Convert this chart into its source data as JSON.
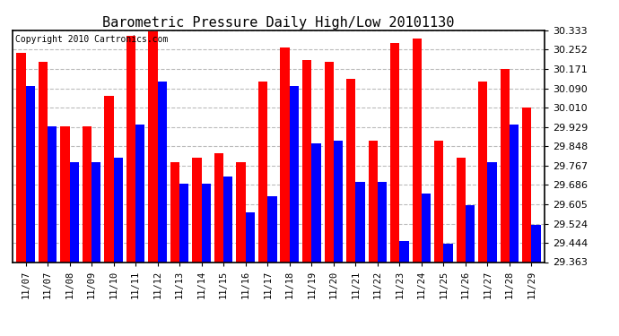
{
  "title": "Barometric Pressure Daily High/Low 20101130",
  "copyright": "Copyright 2010 Cartronics.com",
  "labels": [
    "11/07",
    "11/07",
    "11/08",
    "11/09",
    "11/10",
    "11/11",
    "11/12",
    "11/13",
    "11/14",
    "11/15",
    "11/16",
    "11/17",
    "11/18",
    "11/19",
    "11/20",
    "11/21",
    "11/22",
    "11/23",
    "11/24",
    "11/25",
    "11/26",
    "11/27",
    "11/28",
    "11/29"
  ],
  "high": [
    30.24,
    30.2,
    29.93,
    29.93,
    30.06,
    30.31,
    30.33,
    29.78,
    29.8,
    29.82,
    29.78,
    30.12,
    30.26,
    30.21,
    30.2,
    30.13,
    29.87,
    30.28,
    30.3,
    29.87,
    29.8,
    30.12,
    30.17,
    30.01
  ],
  "low": [
    30.1,
    29.93,
    29.78,
    29.78,
    29.8,
    29.94,
    30.12,
    29.69,
    29.69,
    29.72,
    29.57,
    29.64,
    30.1,
    29.86,
    29.87,
    29.7,
    29.7,
    29.45,
    29.65,
    29.44,
    29.6,
    29.78,
    29.94,
    29.52
  ],
  "high_color": "#FF0000",
  "low_color": "#0000FF",
  "bg_color": "#FFFFFF",
  "grid_color": "#BBBBBB",
  "ymin": 29.363,
  "ymax": 30.333,
  "yticks": [
    29.363,
    29.444,
    29.524,
    29.605,
    29.686,
    29.767,
    29.848,
    29.929,
    30.01,
    30.09,
    30.171,
    30.252,
    30.333
  ],
  "bar_width": 0.42,
  "title_fontsize": 11,
  "copyright_fontsize": 7
}
